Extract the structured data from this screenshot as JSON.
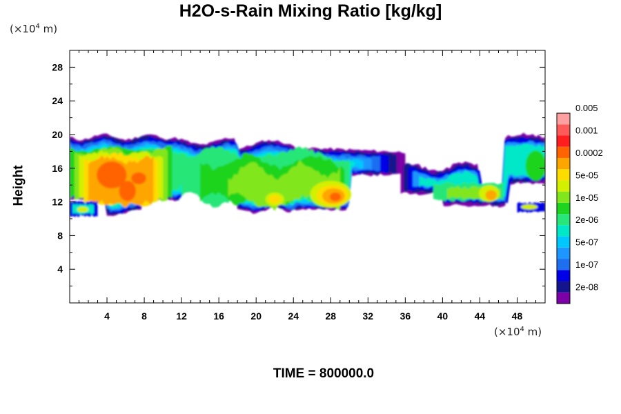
{
  "chart_data": {
    "type": "heatmap",
    "title": "H2O-s-Rain Mixing Ratio [kg/kg]",
    "ylabel": "Height",
    "x_unit_label": "(×10⁴ m)",
    "y_unit_label": "(×10⁴ m)",
    "xlim": [
      0,
      51
    ],
    "ylim": [
      0,
      30
    ],
    "x_ticks": [
      "4",
      "8",
      "12",
      "16",
      "20",
      "24",
      "28",
      "32",
      "36",
      "40",
      "44",
      "48"
    ],
    "y_ticks": [
      "4",
      "8",
      "12",
      "16",
      "20",
      "24",
      "28"
    ],
    "grid": false,
    "legend_placement": "right colorbar",
    "colorbar": {
      "levels": [
        "2e-08",
        "1e-07",
        "5e-07",
        "2e-06",
        "1e-05",
        "5e-05",
        "0.0002",
        "0.001",
        "0.005"
      ],
      "colors": [
        "#7b00a6",
        "#14148c",
        "#0000e6",
        "#1e6ef0",
        "#1e96ff",
        "#00c8ff",
        "#00e8c8",
        "#28e678",
        "#1ed41e",
        "#82e61e",
        "#d2f000",
        "#ffdc00",
        "#ffa500",
        "#ff6400",
        "#ff1e1e",
        "#ff5a5a",
        "#ffa0a0"
      ]
    },
    "field_regions": [
      {
        "x": [
          0,
          10
        ],
        "y": [
          10.5,
          20
        ],
        "peak": "2e-05 to 0.001"
      },
      {
        "x": [
          10,
          36
        ],
        "y": [
          10.5,
          19.5
        ],
        "peak": "1e-05 to 0.001"
      },
      {
        "x": [
          37,
          51
        ],
        "y": [
          11,
          20
        ],
        "peak": "5e-07 to 0.0002"
      }
    ]
  },
  "footer": {
    "time_text": "TIME = 800000.0"
  }
}
